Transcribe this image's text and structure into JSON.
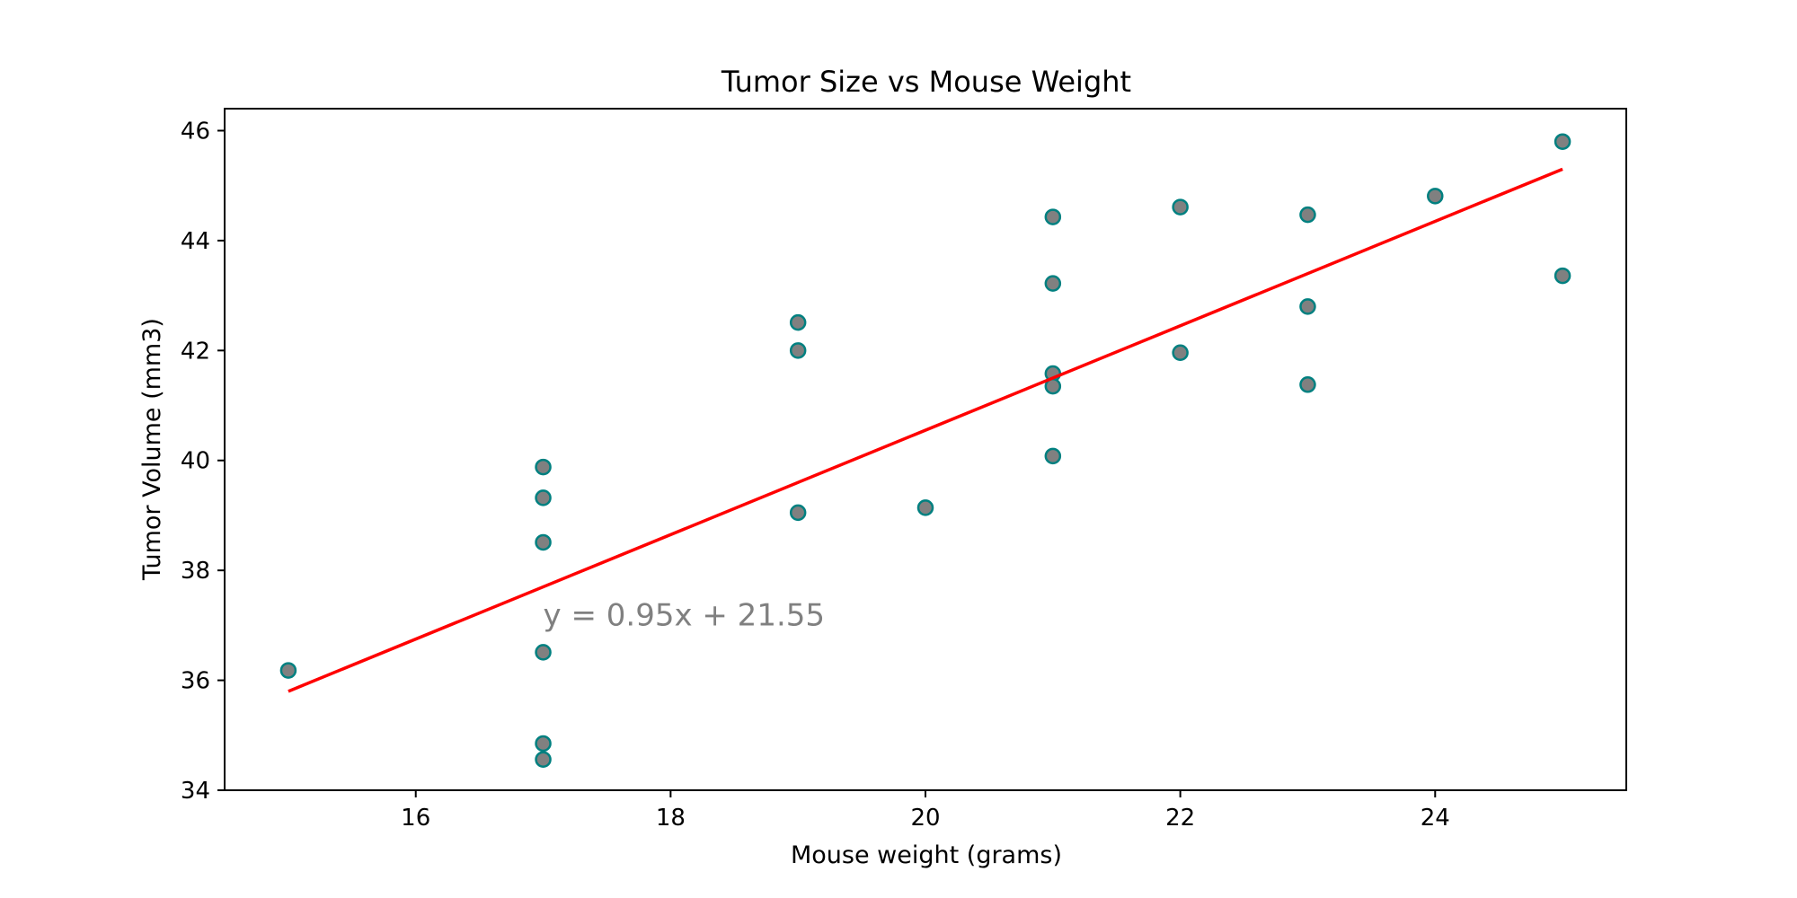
{
  "chart_data": {
    "type": "scatter",
    "title": "Tumor Size vs Mouse Weight",
    "xlabel": "Mouse weight (grams)",
    "ylabel": "Tumor Volume (mm3)",
    "xlim": [
      14.5,
      25.5
    ],
    "ylim": [
      34,
      46.4
    ],
    "xticks": [
      16,
      18,
      20,
      22,
      24
    ],
    "yticks": [
      34,
      36,
      38,
      40,
      42,
      44,
      46
    ],
    "grid": false,
    "points": [
      {
        "x": 15,
        "y": 36.18
      },
      {
        "x": 17,
        "y": 39.88
      },
      {
        "x": 17,
        "y": 39.32
      },
      {
        "x": 17,
        "y": 38.51
      },
      {
        "x": 17,
        "y": 36.51
      },
      {
        "x": 17,
        "y": 34.85
      },
      {
        "x": 17,
        "y": 34.56
      },
      {
        "x": 19,
        "y": 42.51
      },
      {
        "x": 19,
        "y": 42.0
      },
      {
        "x": 19,
        "y": 39.05
      },
      {
        "x": 20,
        "y": 39.14
      },
      {
        "x": 21,
        "y": 44.43
      },
      {
        "x": 21,
        "y": 43.22
      },
      {
        "x": 21,
        "y": 41.58
      },
      {
        "x": 21,
        "y": 41.35
      },
      {
        "x": 21,
        "y": 40.08
      },
      {
        "x": 22,
        "y": 44.61
      },
      {
        "x": 22,
        "y": 41.96
      },
      {
        "x": 23,
        "y": 44.47
      },
      {
        "x": 23,
        "y": 42.8
      },
      {
        "x": 23,
        "y": 41.38
      },
      {
        "x": 24,
        "y": 44.81
      },
      {
        "x": 25,
        "y": 45.8
      },
      {
        "x": 25,
        "y": 43.36
      }
    ],
    "regression": {
      "slope": 0.95,
      "intercept": 21.55,
      "x_range": [
        15,
        25
      ]
    },
    "annotation": {
      "text": "y = 0.95x + 21.55",
      "x": 17,
      "y": 37
    },
    "colors": {
      "marker_fill": "#808080",
      "marker_edge": "#008080",
      "regression_line": "#ff0000",
      "annotation": "#808080",
      "axes": "#000000"
    }
  }
}
